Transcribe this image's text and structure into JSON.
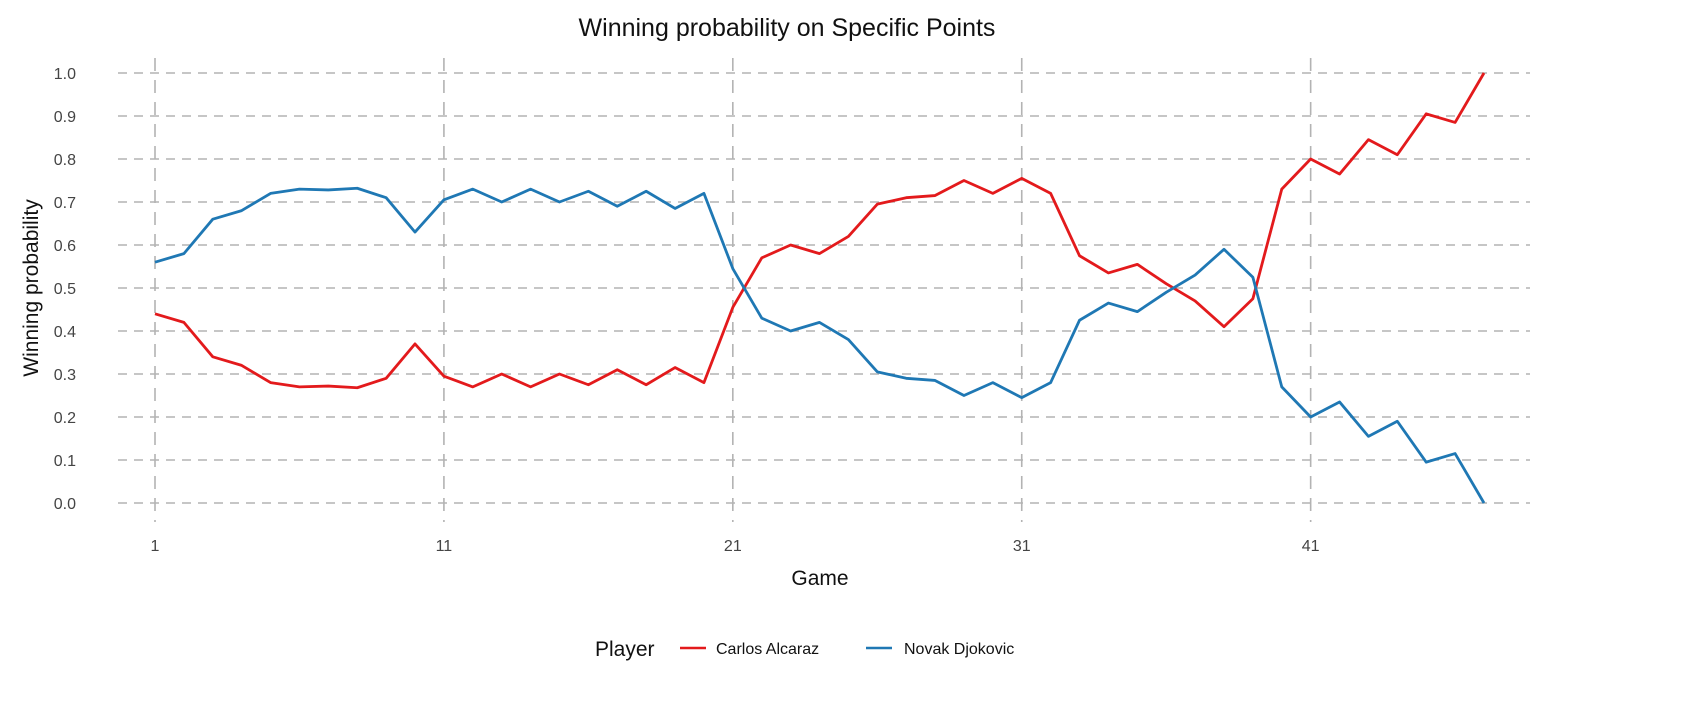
{
  "chart_data": {
    "type": "line",
    "title": "Winning probability on Specific Points",
    "xlabel": "Game",
    "ylabel": "Winning probability",
    "xlim": [
      1,
      47
    ],
    "ylim": [
      0,
      1
    ],
    "x_ticks": [
      1,
      11,
      21,
      31,
      41
    ],
    "y_ticks": [
      "0.0",
      "0.1",
      "0.2",
      "0.3",
      "0.4",
      "0.5",
      "0.6",
      "0.7",
      "0.8",
      "0.9",
      "1.0"
    ],
    "grid": true,
    "legend": {
      "title": "Player",
      "placement": "bottom"
    },
    "x": [
      1,
      2,
      3,
      4,
      5,
      6,
      7,
      8,
      9,
      10,
      11,
      12,
      13,
      14,
      15,
      16,
      17,
      18,
      19,
      20,
      21,
      22,
      23,
      24,
      25,
      26,
      27,
      28,
      29,
      30,
      31,
      32,
      33,
      34,
      35,
      36,
      37,
      38,
      39,
      40,
      41,
      42,
      43,
      44,
      45,
      46,
      47
    ],
    "series": [
      {
        "name": "Carlos Alcaraz",
        "color": "#E31A1C",
        "values": [
          0.44,
          0.42,
          0.34,
          0.32,
          0.28,
          0.27,
          0.272,
          0.268,
          0.29,
          0.37,
          0.295,
          0.27,
          0.3,
          0.27,
          0.3,
          0.275,
          0.31,
          0.275,
          0.315,
          0.28,
          0.455,
          0.57,
          0.6,
          0.58,
          0.62,
          0.695,
          0.71,
          0.715,
          0.75,
          0.72,
          0.755,
          0.72,
          0.575,
          0.535,
          0.555,
          0.51,
          0.47,
          0.41,
          0.475,
          0.73,
          0.8,
          0.765,
          0.845,
          0.81,
          0.905,
          0.885,
          1.0
        ]
      },
      {
        "name": "Novak Djokovic",
        "color": "#1F78B4",
        "values": [
          0.56,
          0.58,
          0.66,
          0.68,
          0.72,
          0.73,
          0.728,
          0.732,
          0.71,
          0.63,
          0.705,
          0.73,
          0.7,
          0.73,
          0.7,
          0.725,
          0.69,
          0.725,
          0.685,
          0.72,
          0.545,
          0.43,
          0.4,
          0.42,
          0.38,
          0.305,
          0.29,
          0.285,
          0.25,
          0.28,
          0.245,
          0.28,
          0.425,
          0.465,
          0.445,
          0.49,
          0.53,
          0.59,
          0.525,
          0.27,
          0.2,
          0.235,
          0.155,
          0.19,
          0.095,
          0.115,
          0.0
        ]
      }
    ]
  }
}
